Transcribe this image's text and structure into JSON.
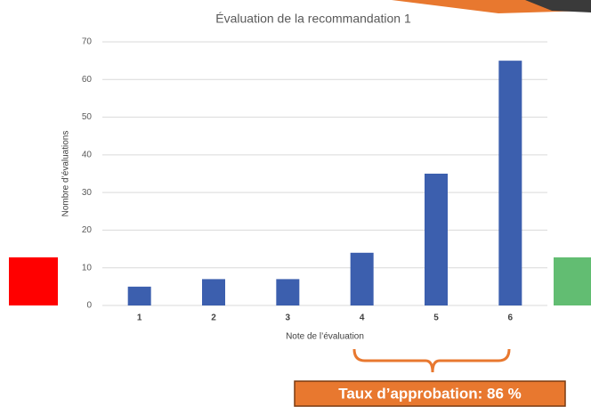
{
  "chart_data": {
    "type": "bar",
    "title": "Évaluation de la recommandation 1",
    "x_label": "Note de l’évaluation",
    "y_label": "Nombre d’évaluations",
    "categories": [
      "1",
      "2",
      "3",
      "4",
      "5",
      "6"
    ],
    "values": [
      5,
      7,
      7,
      14,
      35,
      65
    ],
    "color": "#3c5fae",
    "ylim": [
      0,
      70
    ],
    "yticks": [
      0,
      10,
      20,
      30,
      40,
      50,
      60,
      70
    ],
    "grid": true,
    "annotation": "Taux d’approbation: 86 %"
  }
}
